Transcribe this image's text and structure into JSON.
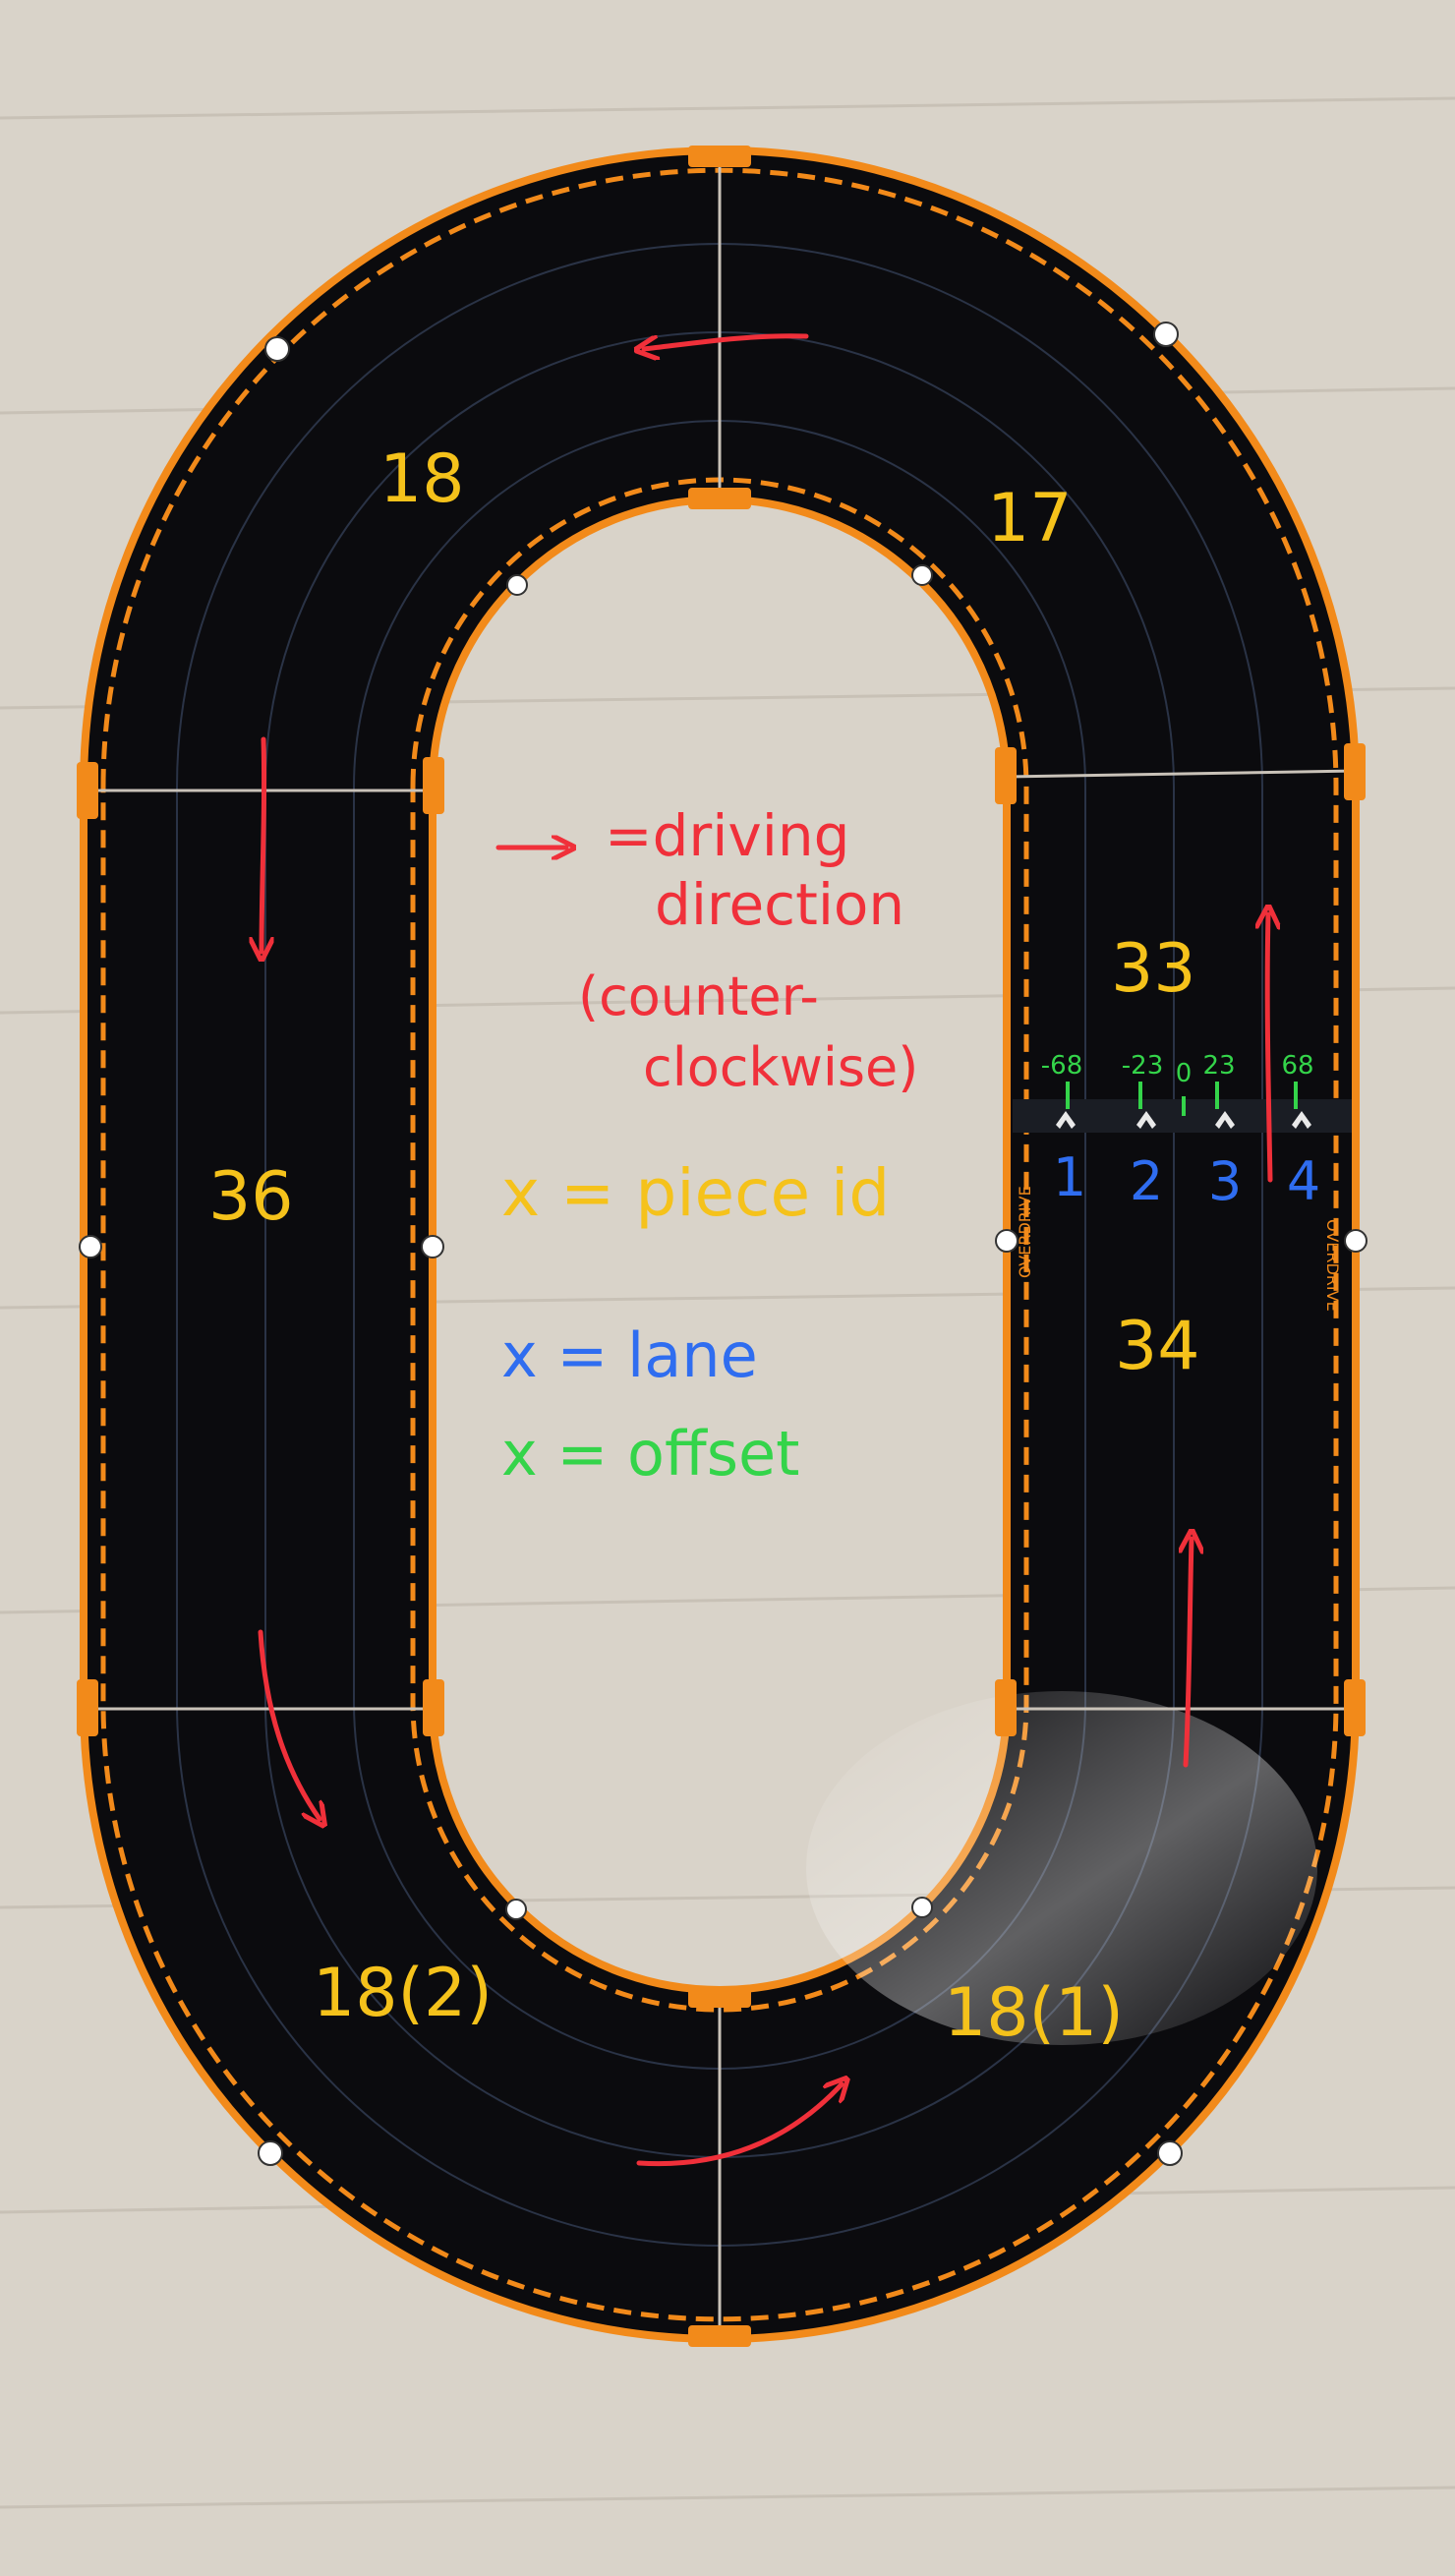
{
  "pieces": {
    "p17": "17",
    "p18": "18",
    "p33": "33",
    "p34": "34",
    "p36": "36",
    "p18_2": "18(2)",
    "p18_1": "18(1)"
  },
  "offsets": [
    "-68",
    "-23",
    "0",
    "23",
    "68"
  ],
  "lanes": [
    "1",
    "2",
    "3",
    "4"
  ],
  "legend": {
    "arrow_line1": "=driving",
    "arrow_line2": "direction",
    "arrow_line3": "(counter-",
    "arrow_line4": "clockwise)",
    "piece_id": "x = piece id",
    "lane": "x = lane",
    "offset": "x = offset"
  },
  "brand": "OVERDRIVE",
  "colors": {
    "floor": "#d9d3c9",
    "track": "#0b0b0e",
    "track_edge": "#f28a1a",
    "annotation_red": "#f0303a",
    "piece_id_yellow": "#f5c21b",
    "lane_blue": "#2f6df0",
    "offset_green": "#34d44a"
  }
}
